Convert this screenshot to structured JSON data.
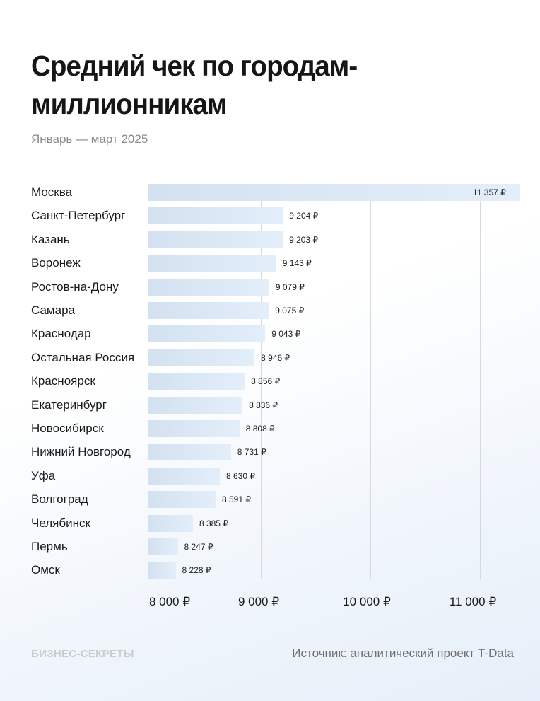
{
  "header": {
    "title": "Средний чек по городам-миллионникам",
    "subtitle": "Январь — март 2025"
  },
  "footer": {
    "brand": "БИЗНЕС-СЕКРЕТЫ",
    "source": "Источник: аналитический проект T-Data"
  },
  "colors": {
    "bar_start": "#d3e1f0",
    "bar_end": "#e3eefa",
    "gridline": "#d6d9dd",
    "text": "#1a1a1a",
    "subtitle": "#8a8a8a"
  },
  "chart_data": {
    "type": "bar",
    "orientation": "horizontal",
    "title": "Средний чек по городам-миллионникам",
    "subtitle": "Январь — март 2025",
    "xlabel": "",
    "ylabel": "",
    "unit": "₽",
    "xlim": [
      7980,
      11357
    ],
    "grid": true,
    "legend": null,
    "x_ticks": [
      "8 000 ₽",
      "9 000 ₽",
      "10 000 ₽",
      "11 000 ₽"
    ],
    "x_tick_values": [
      8000,
      9000,
      10000,
      11000
    ],
    "categories": [
      "Москва",
      "Санкт-Петербург",
      "Казань",
      "Воронеж",
      "Ростов-на-Дону",
      "Самара",
      "Краснодар",
      "Остальная Россия",
      "Красноярск",
      "Екатеринбург",
      "Новосибирск",
      "Нижний Новгород",
      "Уфа",
      "Волгоград",
      "Челябинск",
      "Пермь",
      "Омск"
    ],
    "values": [
      11357,
      9204,
      9203,
      9143,
      9079,
      9075,
      9043,
      8946,
      8856,
      8836,
      8808,
      8731,
      8630,
      8591,
      8385,
      8247,
      8228
    ],
    "value_labels": [
      "11 357 ₽",
      "9 204 ₽",
      "9 203 ₽",
      "9 143 ₽",
      "9 079 ₽",
      "9 075 ₽",
      "9 043 ₽",
      "8 946 ₽",
      "8 856 ₽",
      "8 836 ₽",
      "8 808 ₽",
      "8 731 ₽",
      "8 630 ₽",
      "8 591 ₽",
      "8 385 ₽",
      "8 247 ₽",
      "8 228 ₽"
    ]
  }
}
